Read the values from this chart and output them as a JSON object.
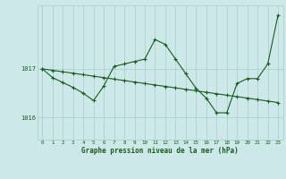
{
  "title": "Graphe pression niveau de la mer (hPa)",
  "bg_color": "#cce8e8",
  "grid_color": "#aacccc",
  "line_color": "#1a5c1a",
  "x_labels": [
    "0",
    "1",
    "2",
    "3",
    "4",
    "5",
    "6",
    "7",
    "8",
    "9",
    "10",
    "11",
    "12",
    "13",
    "14",
    "15",
    "16",
    "17",
    "18",
    "19",
    "20",
    "21",
    "22",
    "23"
  ],
  "yticks": [
    1016,
    1017
  ],
  "ylim": [
    1015.55,
    1018.3
  ],
  "xlim": [
    -0.5,
    23.5
  ],
  "series_smooth": [
    1017.0,
    1016.97,
    1016.94,
    1016.91,
    1016.88,
    1016.85,
    1016.82,
    1016.79,
    1016.76,
    1016.73,
    1016.7,
    1016.67,
    1016.64,
    1016.61,
    1016.58,
    1016.55,
    1016.52,
    1016.49,
    1016.46,
    1016.43,
    1016.4,
    1016.37,
    1016.34,
    1016.31
  ],
  "series_raw": [
    1017.0,
    1016.82,
    1016.72,
    1016.62,
    1016.5,
    1016.35,
    1016.65,
    1017.05,
    1017.1,
    1017.15,
    1017.2,
    1017.6,
    1017.5,
    1017.2,
    1016.9,
    1016.6,
    1016.4,
    1016.1,
    1016.1,
    1016.7,
    1016.8,
    1016.8,
    1017.1,
    1018.1
  ]
}
